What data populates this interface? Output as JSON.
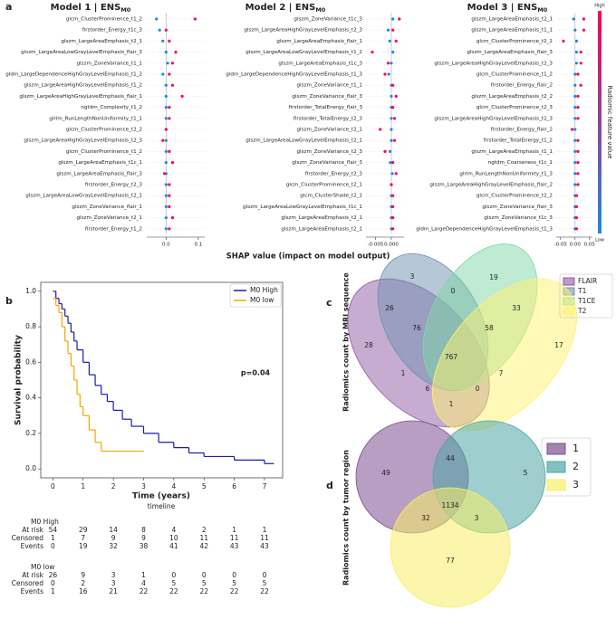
{
  "chart_data": [
    {
      "type": "shap-summary",
      "panel": "a",
      "xlabel": "SHAP value (impact on model output)",
      "colorbar": {
        "title": "Radiomic feature value",
        "high": "High",
        "low": "Low",
        "colors": [
          "#1e88e5",
          "#ff0052"
        ]
      },
      "models": [
        {
          "title": "Model 1 | ENS",
          "title_sub": "M0",
          "categories": [
            "glcm_ClusterProminence_t1_2",
            "firstorder_Energy_t1c_3",
            "glszm_LargeAreaEmphasis_t2_1",
            "glszm_LargeAreaLowGrayLevelEmphasis_flair_3",
            "glszm_ZoneVariance_t1_1",
            "gldm_LargeDependenceHighGrayLevelEmphasis_t1_2",
            "glszm_LargeAreaHighGrayLevelEmphasis_t1_2",
            "glszm_LargeAreaHighGrayLevelEmphasis_flair_1",
            "ngtdm_Complexity_t1_2",
            "glrlm_RunLengthNonUniformity_t1_1",
            "glcm_ClusterProminence_t2_2",
            "glszm_LargeAreaHighGrayLevelEmphasis_t2_3",
            "glcm_ClusterProminence_t1_2",
            "glszm_LargeAreaEmphasis_t1c_1",
            "glszm_LargeAreaEmphasis_flair_3",
            "firstorder_Energy_t2_3",
            "glszm_LargeAreaLowGrayLevelEmphasis_t2_1",
            "glszm_ZoneVariance_flair_1",
            "glszm_ZoneVariance_t2_1",
            "firstorder_Energy_t1_2"
          ],
          "low_values": [
            -0.03,
            -0.02,
            -0.01,
            0,
            0.005,
            -0.01,
            0,
            0,
            0,
            0,
            0,
            0,
            0,
            0,
            0,
            0,
            0,
            0,
            0,
            0
          ],
          "high_values": [
            0.09,
            0.0,
            0.01,
            0.03,
            0.02,
            0.01,
            0.02,
            0.05,
            0.01,
            0.01,
            0.0,
            -0.01,
            0.01,
            0.02,
            -0.005,
            0.01,
            0.01,
            0.01,
            0.02,
            0.01
          ],
          "xlim": [
            -0.06,
            0.12
          ],
          "xticks": [
            {
              "value": 0,
              "label": "0.0"
            },
            0.1
          ]
        },
        {
          "title": "Model 2 | ENS",
          "title_sub": "M0",
          "categories": [
            "glszm_ZoneVariance_t1c_3",
            "glszm_LargeAreaHighGrayLevelEmphasis_t2_3",
            "glszm_LargeAreaEmphasis_flair_1",
            "glszm_LargeAreaLowGrayLevelEmphasis_t1_2",
            "glszm_LargeAreaEmphasis_t1c_3",
            "gldm_LargeDependenceHighGrayLevelEmphasis_t1_3",
            "glszm_ZoneVariance_t1_1",
            "glszm_ZoneVariance_flair_3",
            "firstorder_TotalEnergy_flair_3",
            "firstorder_TotalEnergy_t2_3",
            "glszm_ZoneVariance_t2_1",
            "glszm_LargeAreaLowGrayLevelEmphasis_t2_1",
            "glszm_ZoneVariance_t2_3",
            "glszm_ZoneVariance_flair_3",
            "firstorder_Energy_t2_3",
            "glcm_ClusterProminence_t2_1",
            "glcm_ClusterShade_t2_1",
            "glszm_LargeAreaLowGrayLevelEmphasis_t1c_1",
            "glszm_LargeAreaEmphasis_t2_1",
            "glszm_LargeAreaEmphasis_t2_1"
          ],
          "low_values": [
            0.0005,
            -0.001,
            -0.0005,
            0.0005,
            0,
            -0.0008,
            0,
            0,
            0,
            0,
            0,
            0,
            -0.0004,
            -0.0003,
            0.0003,
            0,
            0,
            0,
            0,
            0
          ],
          "high_values": [
            0.0025,
            0.0005,
            0.0015,
            -0.006,
            -0.001,
            -0.002,
            0.0005,
            0.0015,
            0.0005,
            0.001,
            -0.0035,
            0.001,
            -0.002,
            0.0005,
            0.0015,
            0,
            0.0005,
            0.0005,
            0.0005,
            0.0005
          ],
          "xlim": [
            -0.008,
            0.004
          ],
          "xticks": [
            -0.005,
            {
              "value": 0,
              "label": "0.000"
            }
          ]
        },
        {
          "title": "Model 3 | ENS",
          "title_sub": "M0",
          "categories": [
            "glszm_LargeAreaEmphasis_t2_1",
            "glszm_LargeAreaEmphasis_t1_1",
            "glcm_ClusterProminence_t2_2",
            "glszm_LargeAreaEmphasis_flair_3",
            "glszm_LargeAreaHighGrayLevelEmphasis_t2_3",
            "glcm_ClusterProminence_t1_2",
            "firstorder_Energy_flair_2",
            "glszm_LargeAreaEmphasis_t2_2",
            "glcm_ClusterProminence_t2_3",
            "glszm_LargeAreaHighGrayLevelEmphasis_t2_3",
            "firstorder_Energy_flair_2",
            "firstorder_TotalEnergy_t1_2",
            "glszm_LargeAreaEmphasis_t1_1",
            "ngtdm_Coarseness_t1c_1",
            "glrlm_RunLengthNonUniformity_t1_3",
            "glszm_LargeAreaHighGrayLevelEmphasis_flair_2",
            "glcm_ClusterProminence_t2_2",
            "glszm_ZoneVariance_flair_3",
            "glszm_ZoneVariance_t1c_3",
            "gldm_LargeDependenceHighGrayLevelEmphasis_t1_3"
          ],
          "low_values": [
            -0.005,
            0,
            0.005,
            0.005,
            0.005,
            0,
            0,
            0,
            0,
            0,
            0,
            0,
            0,
            0,
            0,
            0,
            0,
            0,
            0,
            0
          ],
          "high_values": [
            0.03,
            0.03,
            -0.04,
            0.02,
            0.02,
            0.01,
            0.02,
            0.01,
            0.01,
            0.01,
            -0.01,
            0.01,
            0.01,
            0.01,
            0.01,
            0.01,
            0.005,
            0.005,
            0.005,
            0.005
          ],
          "xlim": [
            -0.065,
            0.06
          ],
          "xticks": [
            -0.05,
            {
              "value": 0,
              "label": "0.00"
            },
            0.05
          ]
        }
      ]
    },
    {
      "type": "kaplan-meier",
      "panel": "b",
      "ylabel": "Survival probability",
      "xlabel": "Time (years)",
      "timeline_label": "timeline",
      "annotation": "p=0.04",
      "xlim": [
        -0.4,
        7.6
      ],
      "ylim": [
        -0.05,
        1.05
      ],
      "xticks": [
        0,
        1,
        2,
        3,
        4,
        5,
        6,
        7
      ],
      "yticks": [
        {
          "value": 0,
          "label": "0.0"
        },
        0.2,
        0.4,
        0.6,
        0.8,
        {
          "value": 1,
          "label": "1.0"
        }
      ],
      "legend": "upper right",
      "series": [
        {
          "name": "M0 High",
          "color": "#1c1ca8",
          "x": [
            0,
            0.1,
            0.2,
            0.3,
            0.4,
            0.5,
            0.6,
            0.7,
            0.8,
            1.0,
            1.2,
            1.4,
            1.6,
            1.8,
            2.0,
            2.3,
            2.6,
            3.0,
            3.5,
            4.0,
            4.5,
            5.0,
            6.0,
            7.0,
            7.3
          ],
          "values": [
            1.0,
            0.96,
            0.93,
            0.9,
            0.86,
            0.82,
            0.77,
            0.72,
            0.67,
            0.6,
            0.53,
            0.47,
            0.42,
            0.38,
            0.33,
            0.28,
            0.24,
            0.2,
            0.15,
            0.12,
            0.09,
            0.07,
            0.05,
            0.03,
            0.03
          ]
        },
        {
          "name": "M0 low",
          "color": "#f0a800",
          "x": [
            0,
            0.1,
            0.2,
            0.3,
            0.4,
            0.5,
            0.6,
            0.7,
            0.8,
            0.9,
            1.0,
            1.2,
            1.4,
            1.6,
            3.0
          ],
          "values": [
            0.96,
            0.92,
            0.88,
            0.8,
            0.72,
            0.65,
            0.58,
            0.5,
            0.42,
            0.35,
            0.3,
            0.22,
            0.15,
            0.1,
            0.1
          ]
        }
      ],
      "risk_table": {
        "groups": [
          {
            "name": "M0 High",
            "rows": [
              {
                "label": "At risk",
                "values": [
                  54,
                  29,
                  14,
                  8,
                  4,
                  2,
                  1,
                  1
                ]
              },
              {
                "label": "Censored",
                "values": [
                  1,
                  7,
                  9,
                  9,
                  10,
                  11,
                  11,
                  11
                ]
              },
              {
                "label": "Events",
                "values": [
                  0,
                  19,
                  32,
                  38,
                  41,
                  42,
                  43,
                  43
                ]
              }
            ]
          },
          {
            "name": "M0 low",
            "rows": [
              {
                "label": "At risk",
                "values": [
                  26,
                  9,
                  3,
                  1,
                  0,
                  0,
                  0,
                  0
                ]
              },
              {
                "label": "Censored",
                "values": [
                  0,
                  2,
                  3,
                  4,
                  5,
                  5,
                  5,
                  5
                ]
              },
              {
                "label": "Events",
                "values": [
                  1,
                  16,
                  21,
                  22,
                  22,
                  22,
                  22,
                  22
                ]
              }
            ]
          }
        ]
      }
    },
    {
      "type": "venn4",
      "panel": "c",
      "ylabel": "Radiomics count by MRI sequence",
      "legend": "upper right",
      "sets": [
        {
          "name": "FLAIR",
          "color": "#8e5aa2"
        },
        {
          "name": "T1",
          "color": "#6e8fb0"
        },
        {
          "name": "T1CE",
          "color": "#7ed8a6"
        },
        {
          "name": "T2",
          "color": "#fff270"
        }
      ],
      "values": [
        3,
        19,
        0,
        26,
        33,
        28,
        76,
        58,
        17,
        767,
        1,
        7,
        6,
        0,
        1
      ]
    },
    {
      "type": "venn3",
      "panel": "d",
      "ylabel": "Radiomics count by tumor region",
      "legend": "upper right",
      "sets": [
        {
          "name": "1",
          "color": "#7c4f90"
        },
        {
          "name": "2",
          "color": "#4fa6a6"
        },
        {
          "name": "3",
          "color": "#f8ef66"
        }
      ],
      "values": [
        49,
        44,
        5,
        1134,
        32,
        3,
        77
      ]
    }
  ]
}
